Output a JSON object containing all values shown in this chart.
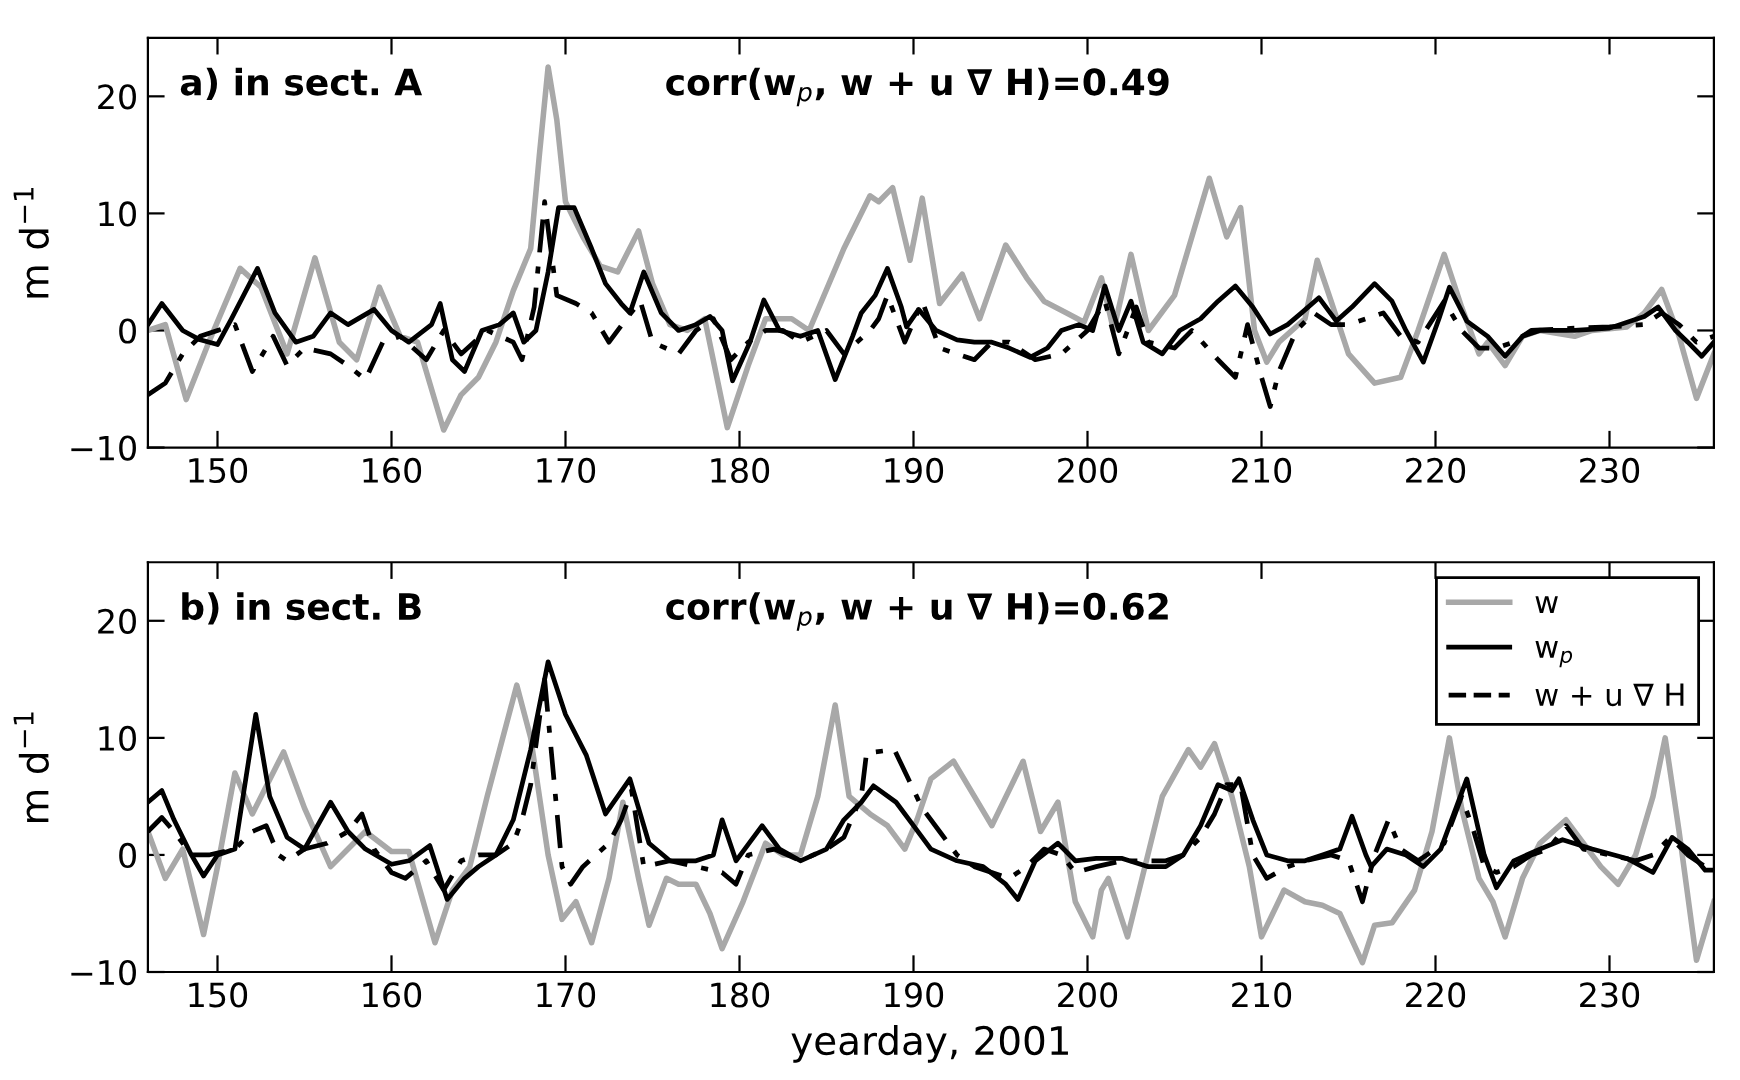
{
  "chart_data": [
    {
      "type": "line",
      "ylabel": "m d$^{−1}$",
      "xlim": [
        146,
        236
      ],
      "ylim": [
        -10,
        25
      ],
      "xticks": [
        150,
        160,
        170,
        180,
        190,
        200,
        210,
        220,
        230
      ],
      "yticks": [
        -10,
        0,
        10,
        20
      ],
      "grid": false,
      "legend": false,
      "annotations": [
        "a) in sect. A",
        "corr(w$_{p}$, w + u ∇ H)=0.49"
      ],
      "series": [
        {
          "color": "#a8a8a8",
          "line_style": "solid",
          "x": [
            146,
            147,
            148.2,
            149.5,
            151.3,
            152.5,
            154,
            155.6,
            157,
            158,
            159.3,
            160.5,
            161.5,
            163,
            164,
            165,
            166,
            167,
            168,
            168.5,
            169,
            169.5,
            170,
            171,
            172,
            173,
            174.2,
            175,
            176,
            177,
            178,
            179.3,
            180.5,
            181.5,
            183,
            184,
            186,
            187.5,
            188,
            188.8,
            189.8,
            190.5,
            191.5,
            192.8,
            193.8,
            195.3,
            196.5,
            197.5,
            198.8,
            199.8,
            200.8,
            201.5,
            202.5,
            203.5,
            205,
            207,
            208,
            208.8,
            209.6,
            210.3,
            211,
            212.5,
            213.2,
            214,
            215,
            216.5,
            218,
            219,
            220.5,
            221.5,
            222.5,
            223,
            224,
            225,
            226,
            228,
            229,
            231,
            232,
            233,
            234,
            235,
            236
          ],
          "values": [
            0,
            0.5,
            -5.9,
            -1,
            5.3,
            3.7,
            -2,
            6.2,
            -1,
            -2.5,
            3.7,
            -0.5,
            -1,
            -8.5,
            -5.5,
            -4,
            -1,
            3.4,
            7,
            15,
            22.5,
            18,
            11,
            8,
            5.5,
            5,
            8.5,
            4,
            0.5,
            0,
            1,
            -8.3,
            -3,
            1,
            1,
            0,
            7,
            11.5,
            11,
            12.2,
            6,
            11.3,
            2.3,
            4.8,
            1,
            7.3,
            4.5,
            2.5,
            1.5,
            0.7,
            4.5,
            0,
            6.5,
            0,
            3,
            13,
            8,
            10.5,
            0,
            -2.7,
            -1,
            1,
            6,
            2.5,
            -2,
            -4.5,
            -4,
            0,
            6.5,
            2,
            -2,
            -1,
            -3,
            -0.5,
            0,
            -0.5,
            0,
            0.3,
            1.5,
            3.5,
            -0.5,
            -5.8,
            -2
          ]
        },
        {
          "color": "#000000",
          "line_style": "solid",
          "x": [
            146,
            146.8,
            148,
            149,
            150,
            150.8,
            152.3,
            153.3,
            154.5,
            155.5,
            156.5,
            157.5,
            159,
            160,
            161,
            162.3,
            162.8,
            163.5,
            164.2,
            165.2,
            166.2,
            167,
            167.6,
            168.3,
            169,
            169.6,
            170.5,
            171.5,
            172.3,
            173.2,
            173.7,
            174.5,
            175.5,
            176.5,
            177.5,
            178.3,
            179,
            179.6,
            180.6,
            181.4,
            182.3,
            183.5,
            184.5,
            185.5,
            186.5,
            187,
            187.8,
            188.5,
            189.3,
            189.6,
            190.3,
            191.3,
            192.5,
            193.5,
            194.5,
            195.5,
            196.7,
            197.7,
            198.5,
            199.5,
            200.3,
            201,
            201.8,
            202.5,
            203.2,
            204.3,
            205.3,
            206.5,
            207.5,
            208.5,
            209.5,
            210.5,
            211.5,
            212.3,
            213.3,
            214.3,
            215.2,
            216.5,
            217.5,
            218.3,
            219.3,
            220.2,
            220.8,
            221.8,
            223,
            224,
            225,
            226,
            228,
            230,
            232,
            232.8,
            233.8,
            234.5,
            235.3,
            236
          ],
          "values": [
            0.5,
            2.3,
            0,
            -0.8,
            -1.2,
            1,
            5.3,
            1.5,
            -1,
            -0.5,
            1.5,
            0.5,
            1.8,
            0,
            -1,
            0.5,
            2.3,
            -2.5,
            -3.5,
            0,
            0.5,
            1.5,
            -1,
            0,
            5,
            10.5,
            10.5,
            7,
            4,
            2.3,
            1.5,
            5,
            1.5,
            0,
            0.5,
            1.2,
            0,
            -4.3,
            -1,
            2.6,
            0,
            -0.5,
            0,
            -4.2,
            -0.5,
            1.5,
            3,
            5.3,
            2,
            0.3,
            1.8,
            0,
            -0.8,
            -1,
            -1,
            -1.5,
            -2.3,
            -1.5,
            0,
            0.5,
            0,
            3.8,
            0,
            2.5,
            -1,
            -2,
            0,
            1,
            2.5,
            3.8,
            2,
            -0.3,
            0.5,
            1.5,
            2.8,
            0.8,
            2,
            4,
            2.5,
            0,
            -2.7,
            1,
            3.7,
            0.8,
            -0.5,
            -2.2,
            -0.5,
            0,
            0,
            0.2,
            1.2,
            2,
            0,
            -1,
            -2.2,
            -1
          ]
        },
        {
          "color": "#000000",
          "line_style": "dashed",
          "x": [
            146,
            147,
            148,
            149,
            150,
            151,
            152,
            153.2,
            154,
            155,
            156.5,
            157.5,
            158.5,
            159.5,
            160.5,
            162,
            163,
            164,
            165.5,
            167,
            167.5,
            168.2,
            168.8,
            169.5,
            170.6,
            171.5,
            172.5,
            173.5,
            174.3,
            175,
            176.5,
            177.5,
            178.5,
            179.5,
            180.5,
            181.5,
            182.5,
            183.5,
            185,
            186,
            187.5,
            188,
            188.5,
            189.5,
            190.5,
            191.5,
            192.5,
            193.5,
            194.5,
            195.5,
            197,
            198.5,
            200,
            201,
            201.8,
            202.8,
            203.5,
            205,
            206,
            207.5,
            208.5,
            209.2,
            210,
            210.5,
            211,
            212,
            213,
            214,
            215,
            216,
            217,
            218,
            219,
            220.5,
            221.5,
            222.5,
            223.5,
            224.5,
            225.5,
            228,
            230,
            232,
            233,
            234,
            235,
            236
          ],
          "values": [
            -5.5,
            -4.5,
            -2,
            -0.5,
            0,
            0.5,
            -3.5,
            -0.5,
            -3,
            -1.5,
            -2,
            -3,
            -4.2,
            -1,
            -0.5,
            -2.5,
            0,
            -2,
            0,
            -1,
            -2.5,
            2,
            11,
            3,
            2.3,
            1.5,
            -1,
            1,
            2.5,
            -1,
            -2,
            0,
            1,
            -2.5,
            -1,
            0,
            0,
            -1,
            0,
            -2,
            0,
            1,
            3,
            -1,
            2.5,
            -1.5,
            -2,
            -2.5,
            -1,
            -1,
            -2.5,
            -2,
            0,
            2.5,
            -2,
            2,
            -1,
            -1.5,
            0,
            -2.5,
            -4,
            0.5,
            -4,
            -6.5,
            -3.5,
            0,
            1.5,
            0.5,
            0.5,
            1,
            1.5,
            -0.5,
            -1,
            2.5,
            0,
            -1.5,
            -1.5,
            -1,
            0,
            0.2,
            0.3,
            0.5,
            1.5,
            0.5,
            -1,
            -0.5
          ]
        }
      ]
    },
    {
      "type": "line",
      "xlabel": "yearday, 2001",
      "ylabel": "m d$^{−1}$",
      "xlim": [
        146,
        236
      ],
      "ylim": [
        -10,
        25
      ],
      "xticks": [
        150,
        160,
        170,
        180,
        190,
        200,
        210,
        220,
        230
      ],
      "yticks": [
        -10,
        0,
        10,
        20
      ],
      "grid": false,
      "legend": "top right",
      "annotations": [
        "b) in sect. B",
        "corr(w$_{p}$, w + u ∇ H)=0.62"
      ],
      "series": [
        {
          "name": "w",
          "color": "#a8a8a8",
          "line_style": "solid",
          "x": [
            146,
            147,
            148,
            149.2,
            150,
            151,
            152,
            153.8,
            155,
            156.5,
            157.5,
            158.5,
            160,
            161,
            162.5,
            163.5,
            164.5,
            165.5,
            167.2,
            168,
            169,
            169.8,
            170.6,
            171.5,
            172.5,
            173.3,
            174.2,
            174.8,
            175.8,
            176.5,
            177.5,
            178.3,
            179,
            180.2,
            181.5,
            182.5,
            183.5,
            184.5,
            185.5,
            186.3,
            187.5,
            188.5,
            189.5,
            190.2,
            191,
            192.3,
            193.5,
            194.5,
            196.3,
            197.3,
            198.3,
            199.3,
            200.3,
            200.8,
            201.2,
            202.3,
            203.3,
            204.3,
            205.8,
            206.5,
            207.3,
            208.3,
            209.3,
            210,
            211.3,
            212.5,
            213.5,
            214.5,
            215.8,
            216.5,
            217.5,
            218.8,
            219.8,
            220.8,
            221.5,
            222.5,
            223.3,
            224,
            225,
            226,
            227.5,
            228.5,
            229.5,
            230.5,
            231.5,
            232.5,
            233.2,
            234,
            235,
            236
          ],
          "values": [
            2,
            -2,
            0.5,
            -6.8,
            -1,
            7,
            3.5,
            8.8,
            4,
            -1,
            0.5,
            2,
            0.3,
            0.3,
            -7.5,
            -3,
            -1,
            5,
            14.5,
            10,
            0,
            -5.5,
            -4,
            -7.5,
            -2,
            4.5,
            -2,
            -6,
            -2,
            -2.5,
            -2.5,
            -5,
            -8,
            -4,
            1,
            0,
            0,
            5,
            12.8,
            5,
            3.5,
            2.5,
            0.5,
            3,
            6.5,
            8,
            5,
            2.5,
            8,
            2,
            4.5,
            -4,
            -7,
            -3,
            -2,
            -7,
            -1,
            5,
            9,
            7.5,
            9.5,
            5,
            -1,
            -7,
            -3,
            -4,
            -4.3,
            -5,
            -9.2,
            -6,
            -5.8,
            -3,
            2,
            10,
            4,
            -2,
            -4,
            -7,
            -2,
            1,
            3,
            1,
            -1,
            -2.5,
            0,
            5,
            10,
            2,
            -9,
            -4
          ]
        },
        {
          "name": "w$_{p}$",
          "color": "#000000",
          "line_style": "solid",
          "x": [
            146,
            146.8,
            147.5,
            148.5,
            149.2,
            150,
            151,
            152.2,
            153,
            154,
            155,
            156.5,
            157.5,
            158.5,
            160,
            161,
            162.2,
            163.2,
            164.2,
            165,
            166,
            167,
            168,
            169,
            170,
            171.2,
            172.3,
            173.7,
            174.8,
            176,
            177.5,
            178.5,
            179,
            179.8,
            181.3,
            182.3,
            183.5,
            185,
            186,
            187,
            187.7,
            189,
            190,
            191,
            192.5,
            194,
            195.3,
            196,
            197,
            198.3,
            199.3,
            200.5,
            202,
            203.5,
            204.5,
            205.5,
            206.5,
            207.5,
            208.3,
            208.7,
            209.5,
            210.3,
            211.5,
            212.5,
            213.5,
            214.5,
            215.2,
            216,
            216.3,
            217.2,
            218.3,
            219.3,
            220.3,
            221.8,
            222.8,
            223.5,
            224.5,
            226,
            227.3,
            229,
            231,
            232.5,
            233.6,
            234.5,
            235.5,
            236
          ],
          "values": [
            4.5,
            5.5,
            3,
            0,
            -1.8,
            0,
            0.5,
            12,
            5,
            1.5,
            0.5,
            4.5,
            2,
            0.5,
            -0.8,
            -0.5,
            0.8,
            -3.8,
            -2,
            -1,
            0,
            3,
            9,
            16.5,
            12,
            8.5,
            3.5,
            6.5,
            1,
            -0.5,
            -0.5,
            0,
            3,
            -0.5,
            2.5,
            0.5,
            -0.5,
            0.5,
            3,
            4.5,
            5.9,
            4.5,
            2.5,
            0.5,
            -0.5,
            -1,
            -2.5,
            -3.8,
            -0.5,
            1,
            -0.5,
            -0.3,
            -0.3,
            -1,
            -1,
            0,
            2.5,
            6,
            5.5,
            6.5,
            3,
            0,
            -0.5,
            -0.5,
            0,
            0.5,
            3.3,
            0,
            -1,
            0.5,
            0,
            -1,
            0.5,
            6.5,
            0,
            -2.8,
            -0.5,
            0.5,
            1.3,
            0.5,
            -0.3,
            -1.5,
            1.5,
            0.5,
            -1.3,
            -1.3
          ]
        },
        {
          "name": "w + u ∇ H",
          "color": "#000000",
          "line_style": "dashed",
          "x": [
            146,
            146.8,
            147.5,
            148.5,
            149.5,
            151,
            152,
            152.8,
            153.5,
            154,
            155,
            156.3,
            157.5,
            158.3,
            159,
            160,
            160.8,
            162,
            163,
            164,
            165,
            166,
            167,
            167.5,
            168,
            168.8,
            169.3,
            169.8,
            170.3,
            171,
            172.5,
            173.2,
            173.8,
            174.5,
            176,
            177.5,
            179,
            179.8,
            180.5,
            182,
            183.5,
            185,
            186,
            187,
            187.3,
            188.9,
            189.7,
            190.5,
            191.5,
            192.5,
            193.5,
            194.5,
            195.5,
            196.5,
            197.5,
            198.5,
            199.3,
            200.5,
            202,
            203,
            204.5,
            205.5,
            206.5,
            207.3,
            208,
            208.8,
            209.5,
            210.3,
            211.5,
            212.5,
            214,
            215,
            215.8,
            216.5,
            217.3,
            218,
            219,
            220.5,
            221.5,
            222.2,
            222.8,
            223.5,
            224.5,
            225.5,
            226.5,
            227.5,
            228.5,
            230,
            231.5,
            232.5,
            233.5,
            234.5,
            235.5,
            236
          ],
          "values": [
            2,
            3.2,
            2,
            0,
            0,
            0.5,
            2,
            2.5,
            0,
            -0.5,
            0.5,
            1,
            2,
            3.5,
            0.5,
            -1.5,
            -2,
            -0.5,
            -3,
            -0.5,
            0,
            0,
            1,
            3,
            6,
            15,
            7,
            -1,
            -2.5,
            -1,
            1,
            3,
            5.5,
            -1,
            -0.5,
            -1,
            -1.5,
            -2.5,
            0,
            0.5,
            -0.5,
            0.5,
            1.5,
            5,
            8.7,
            9,
            6.5,
            4,
            2,
            0,
            -1,
            -1.5,
            -2,
            -1,
            0.5,
            0,
            -1.5,
            -1,
            -0.5,
            -0.5,
            -0.5,
            0,
            1.5,
            3.5,
            6,
            6,
            0,
            -2,
            -1,
            -0.5,
            0,
            -0.5,
            -4,
            0,
            3,
            0.5,
            -0.5,
            1,
            5,
            2,
            -1,
            -1.5,
            -1,
            0,
            0.5,
            2.5,
            0.5,
            0,
            -0.5,
            0,
            1.5,
            0,
            -1,
            -1
          ]
        }
      ]
    }
  ]
}
